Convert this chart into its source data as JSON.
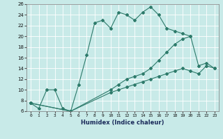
{
  "xlabel": "Humidex (Indice chaleur)",
  "bg_color": "#c8eae8",
  "line_color": "#2d7a6a",
  "xlim": [
    -0.5,
    23.5
  ],
  "ylim": [
    6,
    26
  ],
  "yticks": [
    6,
    8,
    10,
    12,
    14,
    16,
    18,
    20,
    22,
    24,
    26
  ],
  "xticks": [
    0,
    1,
    2,
    3,
    4,
    5,
    6,
    7,
    8,
    9,
    10,
    11,
    12,
    13,
    14,
    15,
    16,
    17,
    18,
    19,
    20,
    21,
    22,
    23
  ],
  "line1_x": [
    0,
    1,
    2,
    3,
    4,
    5,
    6,
    7,
    8,
    9,
    10,
    11,
    12,
    13,
    14,
    15,
    16,
    17,
    18,
    19,
    20
  ],
  "line1_y": [
    7.5,
    6.5,
    10.0,
    10.0,
    6.5,
    6.0,
    11.0,
    16.5,
    22.5,
    23.0,
    21.5,
    24.5,
    24.0,
    23.0,
    24.5,
    25.5,
    24.0,
    21.5,
    21.0,
    20.5,
    20.0
  ],
  "line2_x": [
    0,
    5,
    10,
    11,
    12,
    13,
    14,
    15,
    16,
    17,
    18,
    19,
    20,
    21,
    22,
    23
  ],
  "line2_y": [
    7.5,
    6.0,
    10.0,
    11.0,
    12.0,
    12.5,
    13.0,
    14.0,
    15.5,
    17.0,
    18.5,
    19.5,
    20.0,
    14.5,
    15.0,
    14.0
  ],
  "line3_x": [
    0,
    5,
    10,
    11,
    12,
    13,
    14,
    15,
    16,
    17,
    18,
    19,
    20,
    21,
    22,
    23
  ],
  "line3_y": [
    7.5,
    6.0,
    9.5,
    10.0,
    10.5,
    11.0,
    11.5,
    12.0,
    12.5,
    13.0,
    13.5,
    14.0,
    13.5,
    13.0,
    14.5,
    14.0
  ]
}
